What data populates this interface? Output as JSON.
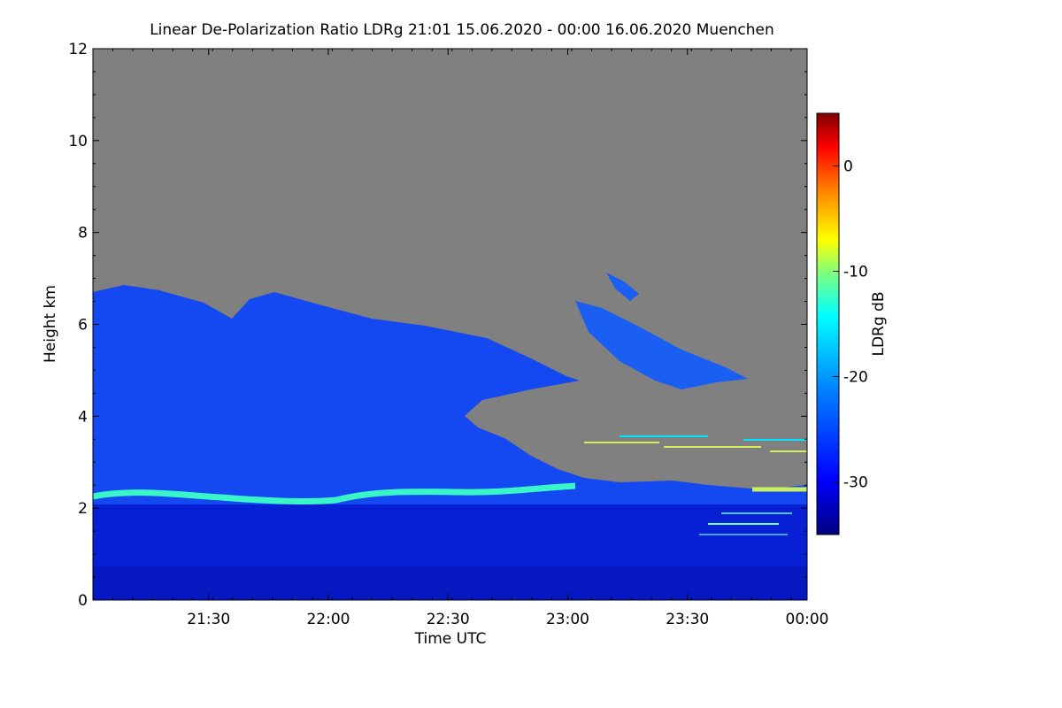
{
  "chart_data": {
    "type": "heatmap",
    "title": "Linear De-Polarization Ratio LDRg   21:01 15.06.2020 - 00:00 16.06.2020 Muenchen",
    "xlabel": "Time UTC",
    "ylabel": "Height km",
    "colorbar_label": "LDRg dB",
    "x_range": [
      "21:01",
      "00:00"
    ],
    "x_ticks": [
      "21:30",
      "22:00",
      "22:30",
      "23:00",
      "23:30",
      "00:00"
    ],
    "y_range": [
      0,
      12
    ],
    "y_ticks": [
      "0",
      "2",
      "4",
      "6",
      "8",
      "10",
      "12"
    ],
    "colorbar_range_db": [
      -35,
      5
    ],
    "colorbar_ticks": [
      "0",
      "-10",
      "-20",
      "-30"
    ],
    "no_data_color": "#808080",
    "colormap": [
      "#00007f",
      "#0000ff",
      "#007fff",
      "#00ffff",
      "#7fff7f",
      "#ffff00",
      "#ff7f00",
      "#ff0000",
      "#7f0000"
    ],
    "features": {
      "aerosol_layer_top_km": 6.6,
      "aerosol_layer_top_end_km": 2.5,
      "layer_boundary_height_km": 2.2,
      "boundary_ldr_db": -22,
      "aerosol_ldr_db": -28,
      "near_ground_ldr_db": -32,
      "thin_cloud_height_km": 5.2,
      "thin_cloud_time": "23:20",
      "elevated_streaks_height_km": 3.4,
      "elevated_streaks_ldr_db": -12
    }
  }
}
